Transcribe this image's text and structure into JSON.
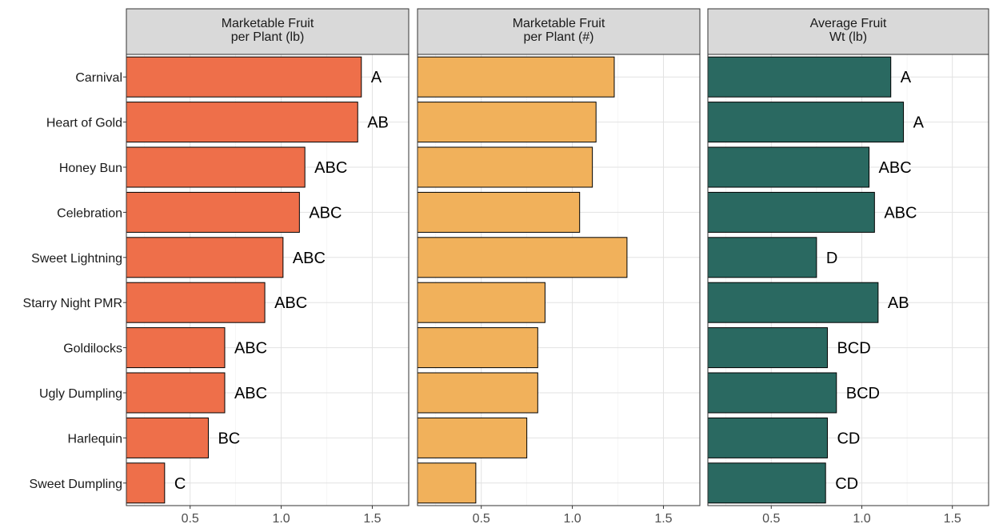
{
  "chart_data": {
    "type": "bar",
    "orientation": "horizontal",
    "categories": [
      "Carnival",
      "Heart of Gold",
      "Honey Bun",
      "Celebration",
      "Sweet Lightning",
      "Starry Night PMR",
      "Goldilocks",
      "Ugly Dumpling",
      "Harlequin",
      "Sweet Dumpling"
    ],
    "xlim": [
      0.15,
      1.7
    ],
    "xticks": [
      "0.5",
      "1.0",
      "1.5"
    ],
    "tick_values": [
      0.5,
      1.0,
      1.5
    ],
    "grid": true,
    "panels": [
      {
        "title_lines": [
          "Marketable Fruit",
          "per Plant (lb)"
        ],
        "color": "#EE6F4A",
        "values": [
          1.44,
          1.42,
          1.13,
          1.1,
          1.01,
          0.91,
          0.69,
          0.69,
          0.6,
          0.36
        ],
        "labels": [
          "A",
          "AB",
          "ABC",
          "ABC",
          "ABC",
          "ABC",
          "ABC",
          "ABC",
          "BC",
          "C"
        ]
      },
      {
        "title_lines": [
          "Marketable Fruit",
          "per Plant (#)"
        ],
        "color": "#F1B15B",
        "values": [
          1.23,
          1.13,
          1.11,
          1.04,
          1.3,
          0.85,
          0.81,
          0.81,
          0.75,
          0.47
        ],
        "labels": []
      },
      {
        "title_lines": [
          "Average Fruit",
          "Wt (lb)"
        ],
        "color": "#2A6961",
        "values": [
          1.16,
          1.23,
          1.04,
          1.07,
          0.75,
          1.09,
          0.81,
          0.86,
          0.81,
          0.8
        ],
        "labels": [
          "A",
          "A",
          "ABC",
          "ABC",
          "D",
          "AB",
          "BCD",
          "BCD",
          "CD",
          "CD"
        ]
      }
    ]
  }
}
